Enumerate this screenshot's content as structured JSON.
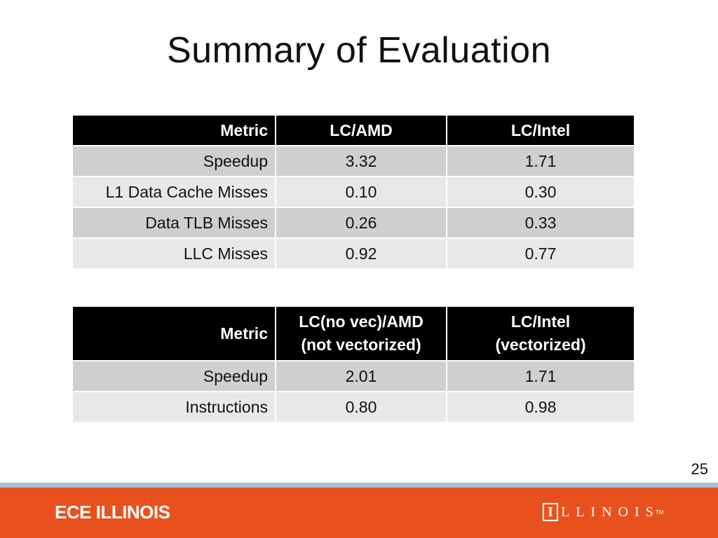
{
  "slide": {
    "title": "Summary of Evaluation",
    "page_number": "25"
  },
  "table1": {
    "headers": [
      "Metric",
      "LC/AMD",
      "LC/Intel"
    ],
    "rows": [
      [
        "Speedup",
        "3.32",
        "1.71"
      ],
      [
        "L1 Data Cache Misses",
        "0.10",
        "0.30"
      ],
      [
        "Data TLB Misses",
        "0.26",
        "0.33"
      ],
      [
        "LLC Misses",
        "0.92",
        "0.77"
      ]
    ]
  },
  "table2": {
    "headers": [
      [
        "Metric"
      ],
      [
        "LC(no vec)/AMD",
        "(not vectorized)"
      ],
      [
        "LC/Intel",
        "(vectorized)"
      ]
    ],
    "rows": [
      [
        "Speedup",
        "2.01",
        "1.71"
      ],
      [
        "Instructions",
        "0.80",
        "0.98"
      ]
    ]
  },
  "footer": {
    "left_text": "ECE ILLINOIS",
    "logo_letter": "I",
    "logo_text": "LLINOIS",
    "logo_mark": "TM",
    "colors": {
      "bar": "#e8511e",
      "stripe": "#a9c0d6"
    }
  }
}
